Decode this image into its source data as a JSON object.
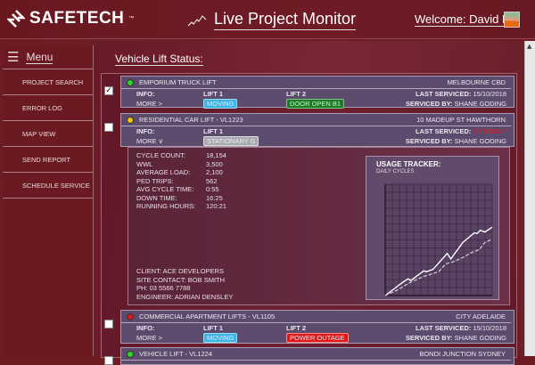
{
  "header": {
    "brand": "SAFETECH",
    "brand_tm": "™",
    "title": "Live Project Monitor",
    "welcome": "Welcome: David B"
  },
  "sidebar": {
    "menu_label": "Menu",
    "items": [
      {
        "label": "PROJECT SEARCH"
      },
      {
        "label": "ERROR LOG"
      },
      {
        "label": "MAP VIEW"
      },
      {
        "label": "SEND REPORT"
      },
      {
        "label": "SCHEDULE SERVICE"
      }
    ]
  },
  "main": {
    "section_title": "Vehicle Lift Status:",
    "labels": {
      "info": "INFO:",
      "more": "MORE",
      "last_serviced": "LAST SERVICED:",
      "serviced_by": "SERVICED BY:",
      "lift1": "LIFT 1",
      "lift2": "LIFT 2"
    },
    "lifts": [
      {
        "name": "EMPORIUM TRUCK LIFT",
        "location": "MELBOURNE CBD",
        "status_color": "#22dd22",
        "checked": true,
        "lift1": "MOVING",
        "lift2": "DOOR OPEN B1",
        "last_serviced": "15/10/2018",
        "serviced_by": "SHANE GODING"
      },
      {
        "name": "RESIDENTIAL CAR LIFT - VL1223",
        "location": "10 MADEUP ST HAWTHORN",
        "status_color": "#f0c800",
        "checked": false,
        "lift1": "STATIONARY G",
        "last_serviced": "10/05/2017",
        "last_serviced_color": "#e02020",
        "serviced_by": "SHANE GODING",
        "expanded": true
      },
      {
        "name": "COMMERCIAL APARTMENT LIFTS - VL1105",
        "location": "CITY ADELAIDE",
        "status_color": "#e01818",
        "checked": false,
        "lift1": "MOVING",
        "lift2": "POWER OUTAGE",
        "last_serviced": "15/10/2018",
        "serviced_by": "SHANE GODING"
      },
      {
        "name": "VEHICLE LIFT - VL1224",
        "location": "BONDI JUNCTION SYDNEY",
        "status_color": "#22dd22",
        "checked": false
      }
    ],
    "details": {
      "stats": [
        {
          "k": "CYCLE COUNT:",
          "v": "18,154"
        },
        {
          "k": "WWL",
          "v": "3,500"
        },
        {
          "k": "AVERAGE LOAD:",
          "v": "2,100"
        },
        {
          "k": "PED TRIPS:",
          "v": "562"
        },
        {
          "k": "AVG CYCLE TIME:",
          "v": "0:55"
        },
        {
          "k": "DOWN TIME:",
          "v": "16:25"
        },
        {
          "k": "RUNNING HOURS:",
          "v": "120:21"
        }
      ],
      "contact": [
        "CLIENT: ACE DEVELOPERS",
        "SITE CONTACT: BOB SMITH",
        "PH: 03 5566 7788",
        "ENGINEER: ADRIAN DENSLEY"
      ]
    }
  },
  "chart_data": {
    "type": "line",
    "title": "USAGE TRACKER:",
    "subtitle": "DAILY CYCLES",
    "grid": true,
    "xlim": [
      0,
      15
    ],
    "ylim": [
      0,
      14
    ],
    "series": [
      {
        "style": "solid",
        "color": "#ffffff",
        "x": [
          0,
          2.5,
          3.2,
          3.6,
          5.4,
          5.8,
          6.7,
          8.7,
          9.2,
          10.9,
          12.5,
          12.9,
          13.3,
          14,
          15
        ],
        "y": [
          0,
          1.7,
          2.1,
          1.9,
          3.1,
          3.0,
          3.3,
          5.3,
          4.6,
          6.7,
          7.9,
          7.8,
          8.2,
          8.0,
          8.6
        ]
      },
      {
        "style": "dashed",
        "color": "#c8c0cc",
        "x": [
          0,
          1.7,
          3.6,
          5.4,
          7.5,
          8.5,
          9.4,
          10.9,
          12.1,
          13.2,
          14,
          15
        ],
        "y": [
          0,
          0.7,
          1.7,
          2.4,
          3.0,
          4.0,
          4.2,
          4.8,
          5.4,
          5.8,
          6.7,
          7.1
        ]
      }
    ]
  },
  "colors": {
    "header": "#6b1a22",
    "card": "#5d4b6d",
    "moving": "#3cb4e6",
    "door_open": "#1e7a2a",
    "stationary": "#a8a8b0",
    "power_outage": "#e01818"
  }
}
